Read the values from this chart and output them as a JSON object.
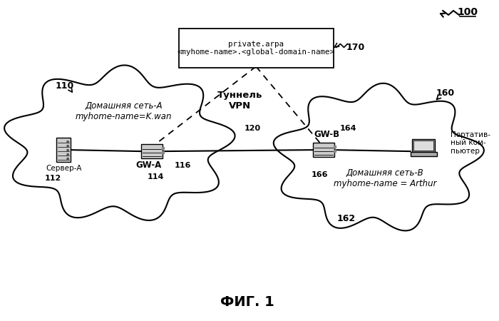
{
  "title": "ФИГ. 1",
  "figure_label": "100",
  "dns_box_text": "private.arpa\n<myhome-name>.<global-domain-name>",
  "dns_label": "170",
  "cloud_a_text": "Домашняя сеть-А\nmyhome-name=K.wan",
  "cloud_a_label": "110",
  "cloud_b_text": "Домашняя сеть-В\nmyhome-name = Arthur",
  "cloud_b_label": "162",
  "server_label": "Сервер-А",
  "server_num": "112",
  "gwa_label": "GW-A",
  "gwa_num": "114",
  "gwa_port_num": "116",
  "gwb_label": "GW-B",
  "gwb_num": "164",
  "gwb_port_num": "166",
  "vpn_label": "Туннель\nVPN",
  "vpn_num": "120",
  "laptop_label": "Портатив-\nный ком-\nпьютер",
  "laptop_num": "160",
  "bg_color": "#ffffff",
  "cloud_color": "#ffffff",
  "cloud_edge_color": "#000000",
  "box_color": "#ffffff",
  "box_edge_color": "#000000"
}
